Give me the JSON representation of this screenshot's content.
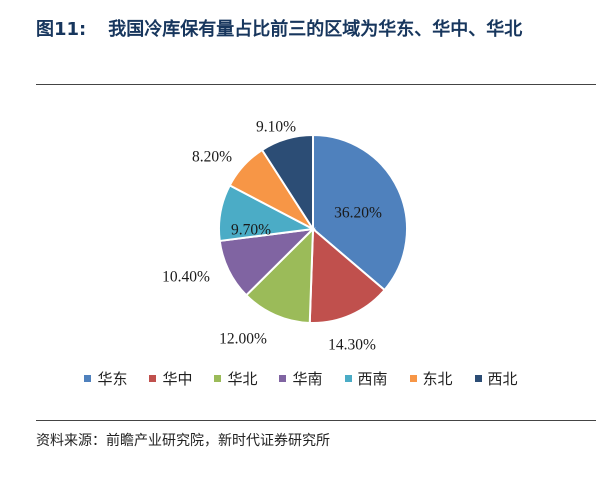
{
  "figure": {
    "number": "图11:",
    "title": "我国冷库保有量占比前三的区域为华东、华中、华北"
  },
  "source": "资料来源：前瞻产业研究院，新时代证券研究所",
  "chart_data": {
    "type": "pie",
    "start_angle_deg": 0,
    "direction": "clockwise",
    "legend_position": "bottom",
    "categories": [
      "华东",
      "华中",
      "华北",
      "华南",
      "西南",
      "东北",
      "西北"
    ],
    "values": [
      36.2,
      14.3,
      12.0,
      10.4,
      9.7,
      8.2,
      9.1
    ],
    "labels": [
      "36.20%",
      "14.30%",
      "12.00%",
      "10.40%",
      "9.70%",
      "8.20%",
      "9.10%"
    ],
    "colors": [
      "#4f81bd",
      "#c0504d",
      "#9bbb59",
      "#8064a2",
      "#4bacc6",
      "#f79646",
      "#2c4d75"
    ]
  }
}
